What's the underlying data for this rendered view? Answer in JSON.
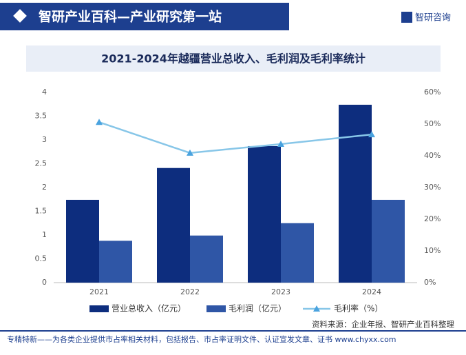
{
  "header": {
    "title": "智研产业百科—产业研究第一站",
    "logo": "智研咨询"
  },
  "chart_data": {
    "type": "bar",
    "title": "2021-2024年越疆营业总收入、毛利润及毛利率统计",
    "categories": [
      "2021",
      "2022",
      "2023",
      "2024"
    ],
    "series": [
      {
        "name": "营业总收入（亿元）",
        "color": "#0d2d7e",
        "type": "bar",
        "values": [
          1.74,
          2.41,
          2.87,
          3.74
        ]
      },
      {
        "name": "毛利润（亿元）",
        "color": "#2f56a6",
        "type": "bar",
        "values": [
          0.88,
          0.99,
          1.25,
          1.74
        ]
      },
      {
        "name": "毛利率（%）",
        "color": "#87c6e8",
        "type": "line",
        "axis": "y2",
        "values": [
          50.6,
          40.9,
          43.7,
          46.7
        ]
      }
    ],
    "ylim": [
      0,
      4
    ],
    "yticks": [
      0,
      0.5,
      1,
      1.5,
      2,
      2.5,
      3,
      3.5,
      4
    ],
    "y2lim": [
      0,
      60
    ],
    "y2ticks": [
      {
        "value": 0,
        "label": "0%"
      },
      {
        "value": 10,
        "label": "10%"
      },
      {
        "value": 20,
        "label": "20%"
      },
      {
        "value": 30,
        "label": "30%"
      },
      {
        "value": 40,
        "label": "40%"
      },
      {
        "value": 50,
        "label": "50%"
      },
      {
        "value": 60,
        "label": "60%"
      }
    ],
    "legend": "bottom"
  },
  "source": "资料来源：企业年报、智研产业百科整理",
  "footer": "专精特新——为各类企业提供市占率相关材料，包括报告、市占率证明文件、认证宣发文章、证书 www.chyxx.com"
}
